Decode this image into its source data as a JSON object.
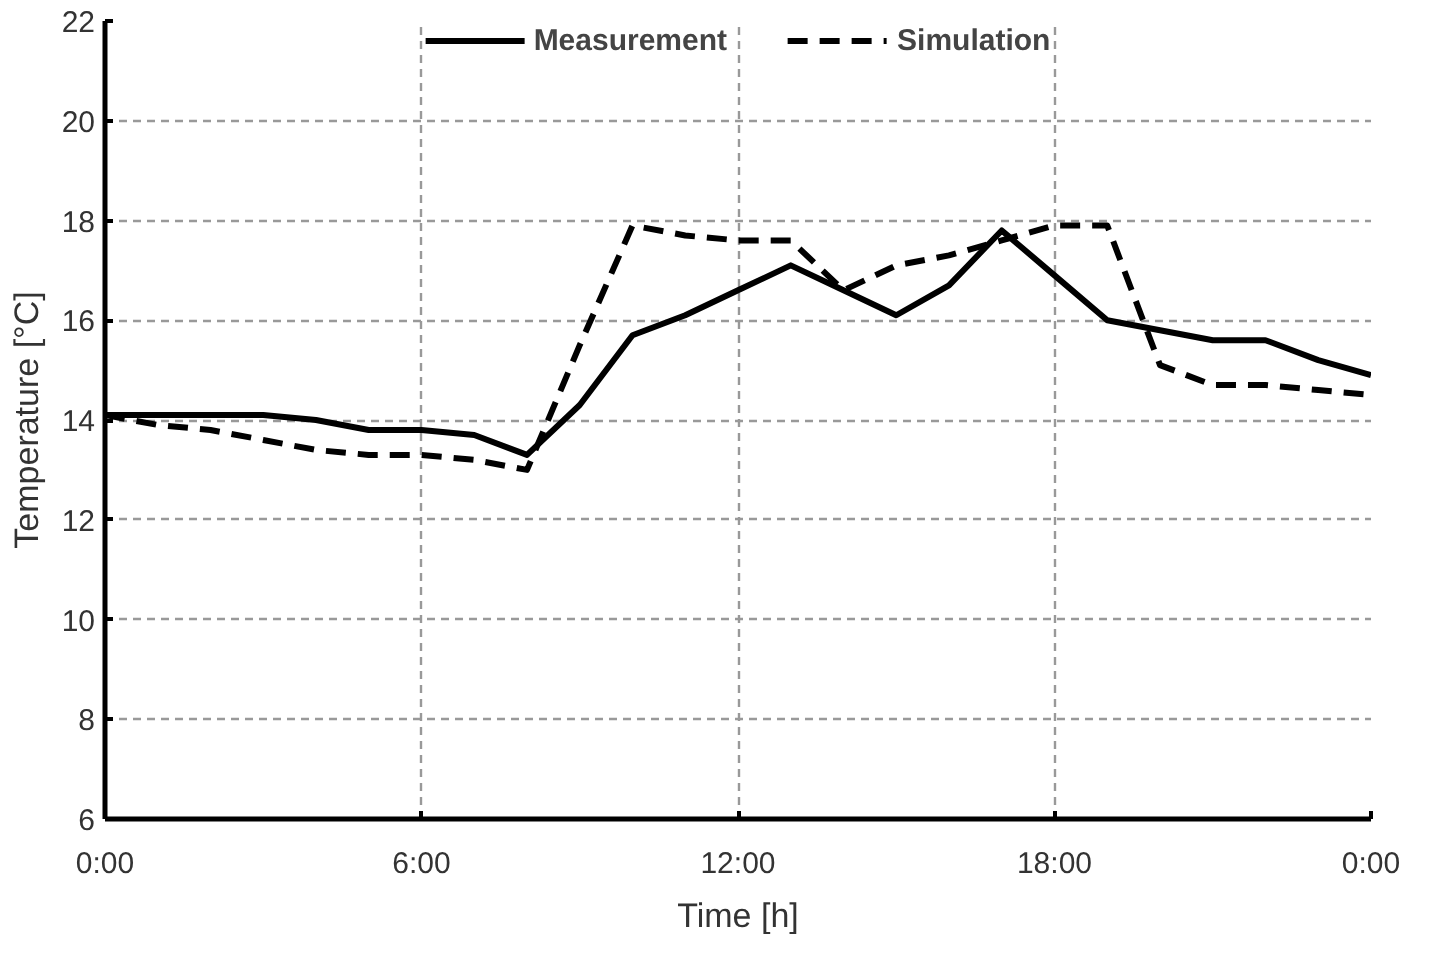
{
  "chart_data": {
    "type": "line",
    "xlabel": "Time [h]",
    "ylabel": "Temperature [°C]",
    "x": [
      0,
      1,
      2,
      3,
      4,
      5,
      6,
      7,
      8,
      9,
      10,
      11,
      12,
      13,
      14,
      15,
      16,
      17,
      18,
      19,
      20,
      21,
      22,
      23,
      24
    ],
    "series": [
      {
        "name": "Measurement",
        "color": "#000000",
        "line_style": "solid",
        "values": [
          14.1,
          14.1,
          14.1,
          14.1,
          14.0,
          13.8,
          13.8,
          13.7,
          13.3,
          14.3,
          15.7,
          16.1,
          16.6,
          17.1,
          16.6,
          16.1,
          16.7,
          17.8,
          16.9,
          16.0,
          15.8,
          15.6,
          15.6,
          15.2,
          14.9
        ]
      },
      {
        "name": "Simulation",
        "color": "#000000",
        "line_style": "dashed",
        "values": [
          14.1,
          13.9,
          13.8,
          13.6,
          13.4,
          13.3,
          13.3,
          13.2,
          13.0,
          15.5,
          17.9,
          17.7,
          17.6,
          17.6,
          16.6,
          17.1,
          17.3,
          17.6,
          17.9,
          17.9,
          15.1,
          14.7,
          14.7,
          14.6,
          14.5
        ]
      }
    ],
    "xlim": [
      0,
      24
    ],
    "xticks": [
      {
        "value": 0,
        "label": "0:00"
      },
      {
        "value": 6,
        "label": "6:00"
      },
      {
        "value": 12,
        "label": "12:00"
      },
      {
        "value": 18,
        "label": "18:00"
      },
      {
        "value": 24,
        "label": "0:00"
      }
    ],
    "ylim": [
      6,
      22
    ],
    "yticks": [
      6,
      8,
      10,
      12,
      14,
      16,
      18,
      20,
      22
    ],
    "grid": true,
    "legend": "top",
    "marker": "none"
  }
}
